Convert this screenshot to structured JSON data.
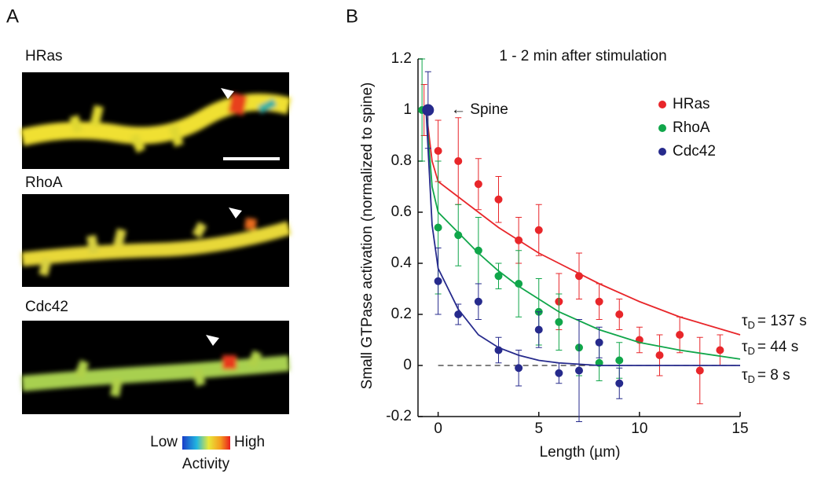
{
  "panel_a": {
    "label": "A",
    "images": [
      "HRas",
      "RhoA",
      "Cdc42"
    ],
    "colorbar": {
      "low": "Low",
      "high": "High",
      "title": "Activity"
    }
  },
  "chart_data": {
    "type": "scatter",
    "panel_label": "B",
    "title": "1 - 2 min after stimulation",
    "y_label": "Small GTPase activation (normalized to spine)",
    "x_label": "Length (µm)",
    "xlim": [
      -1,
      15
    ],
    "xticks": [
      0,
      5,
      10,
      15
    ],
    "ylim": [
      -0.2,
      1.2
    ],
    "yticks": [
      1.2,
      1,
      0.8,
      0.6,
      0.4,
      0.2,
      0,
      -0.2
    ],
    "hline": 0,
    "legend": "upper right",
    "annotations": {
      "spine": "← Spine"
    },
    "series": [
      {
        "name": "HRas",
        "color": "#e8262a",
        "x": [
          -0.7,
          0,
          1,
          2,
          3,
          4,
          5,
          6,
          7,
          8,
          9,
          10,
          11,
          12,
          13,
          14
        ],
        "values": [
          1,
          0.84,
          0.8,
          0.71,
          0.65,
          0.49,
          0.53,
          0.25,
          0.35,
          0.25,
          0.2,
          0.1,
          0.04,
          0.12,
          -0.02,
          0.06
        ],
        "errors": [
          0.1,
          0.12,
          0.17,
          0.1,
          0.09,
          0.09,
          0.1,
          0.11,
          0.09,
          0.07,
          0.06,
          0.05,
          0.08,
          0.07,
          0.13,
          0.06
        ],
        "fit_x": [
          -0.6,
          -0.3,
          0,
          1,
          2,
          3,
          4,
          5,
          6,
          8,
          10,
          12,
          15
        ],
        "fit_y": [
          1,
          0.8,
          0.72,
          0.66,
          0.6,
          0.54,
          0.49,
          0.44,
          0.4,
          0.32,
          0.25,
          0.19,
          0.12
        ],
        "tau": {
          "symbol": "τ",
          "subscript": "D",
          "text": "= 137 s"
        }
      },
      {
        "name": "RhoA",
        "color": "#10a64a",
        "x": [
          -0.8,
          0,
          1,
          2,
          3,
          4,
          5,
          6,
          7,
          8,
          9
        ],
        "values": [
          1,
          0.54,
          0.51,
          0.45,
          0.35,
          0.32,
          0.21,
          0.17,
          0.07,
          0.01,
          0.02
        ],
        "errors": [
          0.2,
          0.26,
          0.12,
          0.13,
          0.05,
          0.13,
          0.13,
          0.11,
          0.11,
          0.07,
          0.07
        ],
        "fit_x": [
          -0.6,
          -0.3,
          0,
          1,
          2,
          3,
          4,
          5,
          6,
          8,
          10,
          12,
          15
        ],
        "fit_y": [
          1,
          0.7,
          0.6,
          0.52,
          0.44,
          0.37,
          0.31,
          0.26,
          0.21,
          0.14,
          0.09,
          0.06,
          0.025
        ],
        "tau": {
          "symbol": "τ",
          "subscript": "D",
          "text": "= 44 s"
        }
      },
      {
        "name": "Cdc42",
        "color": "#262a8c",
        "x": [
          -0.5,
          0,
          1,
          2,
          3,
          4,
          5,
          6,
          7,
          8,
          9
        ],
        "values": [
          1,
          0.33,
          0.2,
          0.25,
          0.06,
          -0.01,
          0.14,
          -0.03,
          -0.02,
          0.09,
          -0.07
        ],
        "errors": [
          0.15,
          0.13,
          0.04,
          0.07,
          0.05,
          0.07,
          0.07,
          0.04,
          0.2,
          0.06,
          0.06
        ],
        "fit_x": [
          -0.6,
          -0.3,
          0,
          1,
          2,
          3,
          4,
          5,
          6,
          8,
          10,
          12,
          15
        ],
        "fit_y": [
          1,
          0.55,
          0.38,
          0.22,
          0.12,
          0.07,
          0.04,
          0.02,
          0.01,
          0,
          0,
          0,
          0
        ],
        "tau": {
          "symbol": "τ",
          "subscript": "D",
          "text": "= 8 s"
        }
      }
    ]
  }
}
